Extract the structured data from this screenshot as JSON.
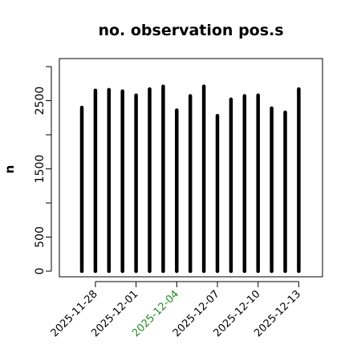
{
  "chart_data": {
    "type": "bar",
    "title": "no. observation pos.s",
    "xlabel": "",
    "ylabel": "n",
    "ylim": [
      0,
      3000
    ],
    "y_ticks": [
      0,
      500,
      1500,
      2500
    ],
    "x_tick_labels": [
      {
        "label": "2025-11-28",
        "color": "#000000"
      },
      {
        "label": "2025-12-01",
        "color": "#000000"
      },
      {
        "label": "2025-12-04",
        "color": "#228B22"
      },
      {
        "label": "2025-12-07",
        "color": "#000000"
      },
      {
        "label": "2025-12-10",
        "color": "#000000"
      },
      {
        "label": "2025-12-13",
        "color": "#000000"
      }
    ],
    "categories": [
      "2025-11-27",
      "2025-11-28",
      "2025-11-29",
      "2025-11-30",
      "2025-12-01",
      "2025-12-02",
      "2025-12-03",
      "2025-12-04",
      "2025-12-05",
      "2025-12-06",
      "2025-12-07",
      "2025-12-08",
      "2025-12-09",
      "2025-12-10",
      "2025-12-11",
      "2025-12-12",
      "2025-12-13"
    ],
    "values": [
      2400,
      2650,
      2660,
      2640,
      2580,
      2670,
      2710,
      2360,
      2570,
      2710,
      2280,
      2520,
      2570,
      2580,
      2390,
      2330,
      2670
    ],
    "grid": false,
    "bar_color": "#000000"
  }
}
